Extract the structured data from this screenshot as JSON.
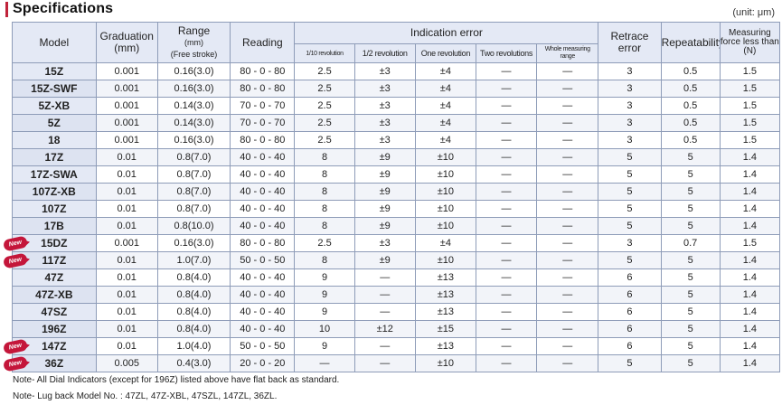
{
  "title": "Specifications",
  "unit": "(unit: μm)",
  "headers": {
    "model": "Model",
    "graduation": "Graduation",
    "graduation_unit": "(mm)",
    "range": "Range",
    "range_unit": "(mm)",
    "range_note": "(Free stroke)",
    "reading": "Reading",
    "indication_error": "Indication error",
    "tenth_rev": "1/10 revolution",
    "half_rev": "1/2 revolution",
    "one_rev": "One revolution",
    "two_rev": "Two revolutions",
    "whole_range": "Whole measuring range",
    "retrace": "Retrace",
    "retrace2": "error",
    "repeatability": "Repeatability",
    "force": "Measuring",
    "force2": "force less than",
    "force3": "(N)"
  },
  "new_label": "New",
  "rows": [
    {
      "model": "15Z",
      "grad": "0.001",
      "range": "0.16",
      "free": "(3.0)",
      "reading": "80 - 0 - 80",
      "r10": "2.5",
      "r2": "±3",
      "r1": "±4",
      "rr2": "—",
      "rw": "—",
      "retrace": "3",
      "rep": "0.5",
      "force": "1.5",
      "is_new": false
    },
    {
      "model": "15Z-SWF",
      "grad": "0.001",
      "range": "0.16",
      "free": "(3.0)",
      "reading": "80 - 0 - 80",
      "r10": "2.5",
      "r2": "±3",
      "r1": "±4",
      "rr2": "—",
      "rw": "—",
      "retrace": "3",
      "rep": "0.5",
      "force": "1.5",
      "is_new": false
    },
    {
      "model": "5Z-XB",
      "grad": "0.001",
      "range": "0.14",
      "free": "(3.0)",
      "reading": "70 - 0 - 70",
      "r10": "2.5",
      "r2": "±3",
      "r1": "±4",
      "rr2": "—",
      "rw": "—",
      "retrace": "3",
      "rep": "0.5",
      "force": "1.5",
      "is_new": false
    },
    {
      "model": "5Z",
      "grad": "0.001",
      "range": "0.14",
      "free": "(3.0)",
      "reading": "70 - 0 - 70",
      "r10": "2.5",
      "r2": "±3",
      "r1": "±4",
      "rr2": "—",
      "rw": "—",
      "retrace": "3",
      "rep": "0.5",
      "force": "1.5",
      "is_new": false
    },
    {
      "model": "18",
      "grad": "0.001",
      "range": "0.16",
      "free": "(3.0)",
      "reading": "80 - 0 - 80",
      "r10": "2.5",
      "r2": "±3",
      "r1": "±4",
      "rr2": "—",
      "rw": "—",
      "retrace": "3",
      "rep": "0.5",
      "force": "1.5",
      "is_new": false
    },
    {
      "model": "17Z",
      "grad": "0.01",
      "range": "0.8",
      "free": "(7.0)",
      "reading": "40 - 0 - 40",
      "r10": "8",
      "r2": "±9",
      "r1": "±10",
      "rr2": "—",
      "rw": "—",
      "retrace": "5",
      "rep": "5",
      "force": "1.4",
      "is_new": false
    },
    {
      "model": "17Z-SWA",
      "grad": "0.01",
      "range": "0.8",
      "free": "(7.0)",
      "reading": "40 - 0 - 40",
      "r10": "8",
      "r2": "±9",
      "r1": "±10",
      "rr2": "—",
      "rw": "—",
      "retrace": "5",
      "rep": "5",
      "force": "1.4",
      "is_new": false
    },
    {
      "model": "107Z-XB",
      "grad": "0.01",
      "range": "0.8",
      "free": "(7.0)",
      "reading": "40 - 0 - 40",
      "r10": "8",
      "r2": "±9",
      "r1": "±10",
      "rr2": "—",
      "rw": "—",
      "retrace": "5",
      "rep": "5",
      "force": "1.4",
      "is_new": false
    },
    {
      "model": "107Z",
      "grad": "0.01",
      "range": "0.8",
      "free": "(7.0)",
      "reading": "40 - 0 - 40",
      "r10": "8",
      "r2": "±9",
      "r1": "±10",
      "rr2": "—",
      "rw": "—",
      "retrace": "5",
      "rep": "5",
      "force": "1.4",
      "is_new": false
    },
    {
      "model": "17B",
      "grad": "0.01",
      "range": "0.8",
      "free": "(10.0)",
      "reading": "40 - 0 - 40",
      "r10": "8",
      "r2": "±9",
      "r1": "±10",
      "rr2": "—",
      "rw": "—",
      "retrace": "5",
      "rep": "5",
      "force": "1.4",
      "is_new": false
    },
    {
      "model": "15DZ",
      "grad": "0.001",
      "range": "0.16",
      "free": "(3.0)",
      "reading": "80 - 0 - 80",
      "r10": "2.5",
      "r2": "±3",
      "r1": "±4",
      "rr2": "—",
      "rw": "—",
      "retrace": "3",
      "rep": "0.7",
      "force": "1.5",
      "is_new": true
    },
    {
      "model": "117Z",
      "grad": "0.01",
      "range": "1.0",
      "free": "(7.0)",
      "reading": "50 - 0 - 50",
      "r10": "8",
      "r2": "±9",
      "r1": "±10",
      "rr2": "—",
      "rw": "—",
      "retrace": "5",
      "rep": "5",
      "force": "1.4",
      "is_new": true
    },
    {
      "model": "47Z",
      "grad": "0.01",
      "range": "0.8",
      "free": "(4.0)",
      "reading": "40 - 0 - 40",
      "r10": "9",
      "r2": "—",
      "r1": "±13",
      "rr2": "—",
      "rw": "—",
      "retrace": "6",
      "rep": "5",
      "force": "1.4",
      "is_new": false
    },
    {
      "model": "47Z-XB",
      "grad": "0.01",
      "range": "0.8",
      "free": "(4.0)",
      "reading": "40 - 0 - 40",
      "r10": "9",
      "r2": "—",
      "r1": "±13",
      "rr2": "—",
      "rw": "—",
      "retrace": "6",
      "rep": "5",
      "force": "1.4",
      "is_new": false
    },
    {
      "model": "47SZ",
      "grad": "0.01",
      "range": "0.8",
      "free": "(4.0)",
      "reading": "40 - 0 - 40",
      "r10": "9",
      "r2": "—",
      "r1": "±13",
      "rr2": "—",
      "rw": "—",
      "retrace": "6",
      "rep": "5",
      "force": "1.4",
      "is_new": false
    },
    {
      "model": "196Z",
      "grad": "0.01",
      "range": "0.8",
      "free": "(4.0)",
      "reading": "40 - 0 - 40",
      "r10": "10",
      "r2": "±12",
      "r1": "±15",
      "rr2": "—",
      "rw": "—",
      "retrace": "6",
      "rep": "5",
      "force": "1.4",
      "is_new": false
    },
    {
      "model": "147Z",
      "grad": "0.01",
      "range": "1.0",
      "free": "(4.0)",
      "reading": "50 - 0 - 50",
      "r10": "9",
      "r2": "—",
      "r1": "±13",
      "rr2": "—",
      "rw": "—",
      "retrace": "6",
      "rep": "5",
      "force": "1.4",
      "is_new": true
    },
    {
      "model": "36Z",
      "grad": "0.005",
      "range": "0.4",
      "free": "(3.0)",
      "reading": "20 - 0 - 20",
      "r10": "—",
      "r2": "—",
      "r1": "±10",
      "rr2": "—",
      "rw": "—",
      "retrace": "5",
      "rep": "5",
      "force": "1.4",
      "is_new": true
    }
  ],
  "notes": [
    "Note- All Dial Indicators (except for 196Z) listed above have flat back as standard.",
    "Note- Lug back Model No. : 47ZL, 47Z-XBL, 47SZL, 147ZL, 36ZL."
  ]
}
